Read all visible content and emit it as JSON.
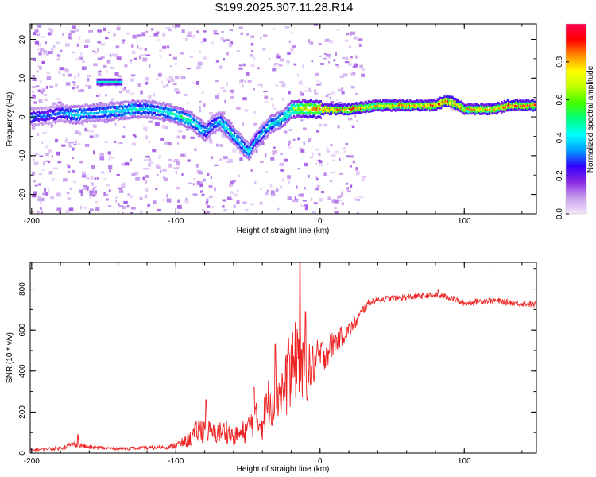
{
  "title": "S199.2025.307.11.28.R14",
  "chart_data": [
    {
      "type": "heatmap",
      "title": "",
      "xlabel": "Height of straight line (km)",
      "ylabel": "Frequency (Hz)",
      "xlim": [
        -201,
        150
      ],
      "ylim": [
        -25,
        24
      ],
      "x_ticks": [
        "-200",
        "-100",
        "0",
        "100"
      ],
      "y_ticks": [
        "-20",
        "-10",
        "0",
        "10",
        "20"
      ],
      "colorbar": {
        "label": "Normalized spectral amplitude",
        "range": [
          0,
          1
        ],
        "ticks": [
          "0.0",
          "0.2",
          "0.4",
          "0.6",
          "0.8"
        ],
        "colors": [
          "#f4e6fb",
          "#c9a0ec",
          "#8a2be2",
          "#3300ff",
          "#00a0ff",
          "#00ffff",
          "#00ff80",
          "#40ff00",
          "#c0ff00",
          "#ffff00",
          "#ff8c00",
          "#ff0000",
          "#ff0050"
        ]
      },
      "ridge": {
        "x": [
          -200,
          -190,
          -180,
          -170,
          -160,
          -150,
          -140,
          -130,
          -120,
          -110,
          -100,
          -90,
          -80,
          -75,
          -70,
          -65,
          -60,
          -55,
          -50,
          -45,
          -40,
          -35,
          -30,
          -25,
          -20,
          -10,
          0,
          10,
          20,
          30,
          40,
          50,
          60,
          70,
          80,
          85,
          90,
          95,
          100,
          110,
          120,
          130,
          140,
          150
        ],
        "y": [
          0,
          0.3,
          1,
          0.5,
          1,
          1.2,
          1.5,
          2,
          2,
          1.5,
          0.5,
          -1,
          -4,
          -2,
          -1,
          -3,
          -5,
          -7,
          -9,
          -6,
          -4,
          -2,
          -1,
          0,
          2,
          2,
          2,
          2,
          2,
          2.5,
          3,
          3,
          3,
          3,
          3,
          4,
          4,
          3,
          2,
          2,
          2,
          3,
          3,
          3
        ],
        "amplitude": [
          0.35,
          0.3,
          0.35,
          0.45,
          0.4,
          0.4,
          0.45,
          0.45,
          0.4,
          0.45,
          0.5,
          0.5,
          0.4,
          0.35,
          0.45,
          0.45,
          0.45,
          0.4,
          0.45,
          0.35,
          0.4,
          0.45,
          0.45,
          0.5,
          0.6,
          0.8,
          0.85,
          0.9,
          0.9,
          0.8,
          0.8,
          0.82,
          0.85,
          0.85,
          0.9,
          0.95,
          0.95,
          0.9,
          0.8,
          0.85,
          0.85,
          0.9,
          0.9,
          0.95
        ]
      },
      "side_band": {
        "x": [
          -155,
          -138
        ],
        "y": 9
      }
    },
    {
      "type": "line",
      "title": "",
      "xlabel": "Height of straight line (km)",
      "ylabel": "SNR (10 * v/v)",
      "xlim": [
        -201,
        150
      ],
      "ylim": [
        0,
        930
      ],
      "x_ticks": [
        "-200",
        "-100",
        "0",
        "100"
      ],
      "y_ticks": [
        "0",
        "200",
        "400",
        "600",
        "800"
      ],
      "color": "#ee2222",
      "x": [
        -200,
        -180,
        -170,
        -160,
        -140,
        -120,
        -105,
        -95,
        -90,
        -85,
        -80,
        -75,
        -70,
        -65,
        -60,
        -55,
        -50,
        -45,
        -40,
        -35,
        -30,
        -25,
        -20,
        -17,
        -15,
        -13,
        -10,
        -5,
        0,
        5,
        10,
        15,
        20,
        25,
        30,
        35,
        40,
        50,
        60,
        70,
        80,
        90,
        100,
        110,
        120,
        130,
        140,
        150
      ],
      "y": [
        15,
        25,
        45,
        28,
        22,
        25,
        30,
        50,
        70,
        110,
        120,
        95,
        100,
        110,
        80,
        90,
        120,
        160,
        150,
        260,
        290,
        310,
        380,
        450,
        500,
        400,
        380,
        430,
        470,
        500,
        540,
        570,
        600,
        640,
        700,
        740,
        750,
        755,
        760,
        765,
        770,
        760,
        730,
        740,
        745,
        735,
        730,
        725
      ],
      "noise": [
        5,
        10,
        15,
        10,
        8,
        8,
        10,
        25,
        40,
        60,
        70,
        50,
        55,
        60,
        45,
        55,
        70,
        90,
        90,
        140,
        140,
        150,
        190,
        200,
        200,
        170,
        150,
        110,
        90,
        80,
        60,
        50,
        40,
        30,
        25,
        20,
        15,
        15,
        15,
        15,
        15,
        15,
        15,
        15,
        15,
        15,
        15,
        15
      ],
      "spikes": [
        {
          "x": -168,
          "y": 90
        },
        {
          "x": -79,
          "y": 260
        },
        {
          "x": -46,
          "y": 320
        },
        {
          "x": -31,
          "y": 530
        },
        {
          "x": -22,
          "y": 560
        },
        {
          "x": -14,
          "y": 930
        },
        {
          "x": -10,
          "y": 690
        },
        {
          "x": 82,
          "y": 795
        }
      ]
    }
  ]
}
